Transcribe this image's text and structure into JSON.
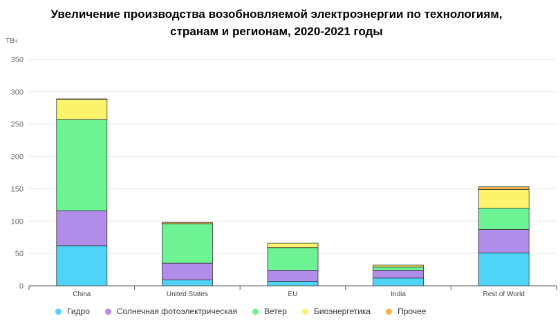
{
  "chart_data": {
    "type": "bar",
    "stacked": true,
    "title_lines": [
      "Увеличение производства возобновляемой электроэнергии по технологиям,",
      "странам и регионам, 2020-2021 годы"
    ],
    "ylabel": "ТВч",
    "ylim": [
      0,
      350
    ],
    "yticks": [
      0,
      50,
      100,
      150,
      200,
      250,
      300,
      350
    ],
    "grid": true,
    "legend_position": "bottom",
    "categories": [
      "China",
      "United States",
      "EU",
      "India",
      "Rest of World"
    ],
    "series": [
      {
        "name": "Гидро",
        "color": "#4fd3f7",
        "values": [
          62,
          9,
          7,
          12,
          51
        ]
      },
      {
        "name": "Солнечная фотоэлектрическая",
        "color": "#b08de8",
        "values": [
          54,
          26,
          17,
          12,
          36
        ]
      },
      {
        "name": "Ветер",
        "color": "#6df294",
        "values": [
          141,
          61,
          35,
          5,
          33
        ]
      },
      {
        "name": "Биоэнергетика",
        "color": "#fcf36c",
        "values": [
          31,
          0,
          7,
          3,
          29
        ]
      },
      {
        "name": "Прочее",
        "color": "#f2b54a",
        "values": [
          1,
          2,
          0,
          0,
          4
        ]
      }
    ]
  }
}
